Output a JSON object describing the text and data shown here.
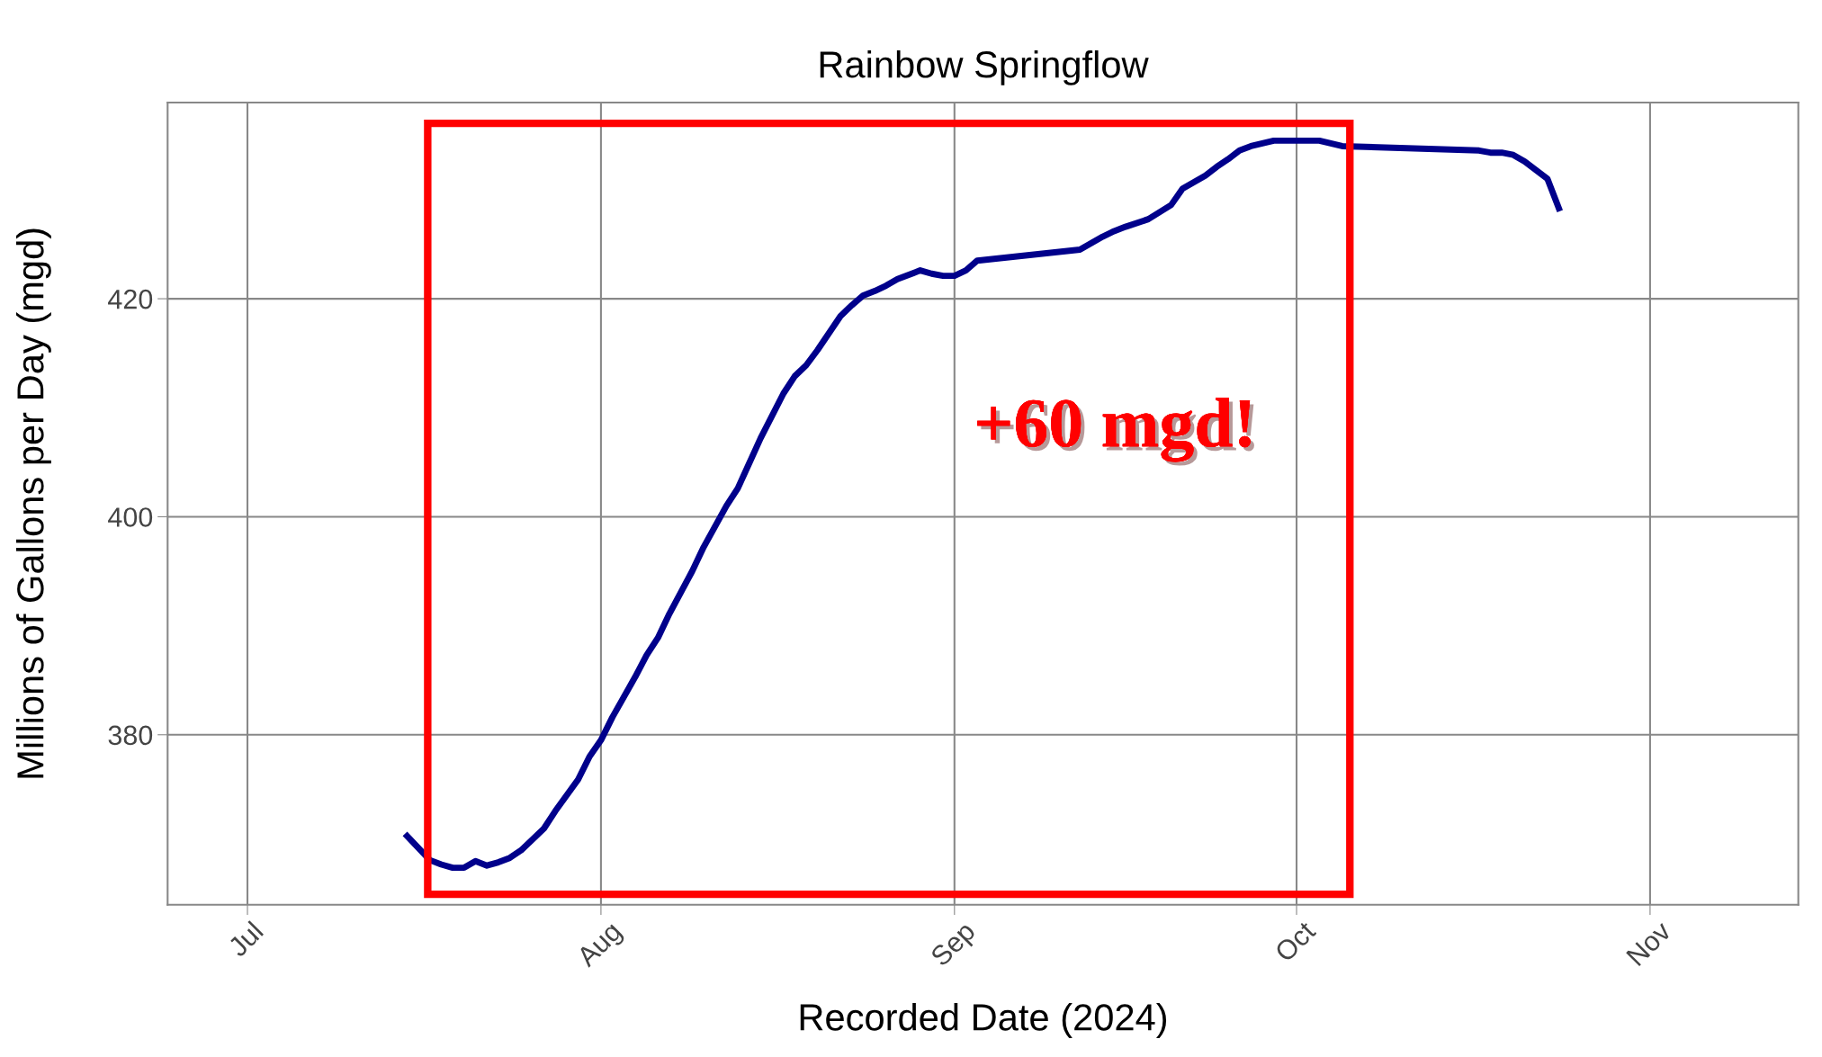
{
  "chart_data": {
    "type": "line",
    "title": "Rainbow Springflow",
    "xlabel": "Recorded Date (2024)",
    "ylabel": "Millions of Gallons per Day (mgd)",
    "x": [
      "2024-07-15",
      "2024-07-17",
      "2024-07-18",
      "2024-07-19",
      "2024-07-20",
      "2024-07-21",
      "2024-07-22",
      "2024-07-23",
      "2024-07-24",
      "2024-07-25",
      "2024-07-27",
      "2024-07-28",
      "2024-07-30",
      "2024-07-31",
      "2024-08-01",
      "2024-08-02",
      "2024-08-04",
      "2024-08-05",
      "2024-08-06",
      "2024-08-07",
      "2024-08-09",
      "2024-08-10",
      "2024-08-12",
      "2024-08-13",
      "2024-08-14",
      "2024-08-15",
      "2024-08-17",
      "2024-08-18",
      "2024-08-19",
      "2024-08-20",
      "2024-08-22",
      "2024-08-23",
      "2024-08-24",
      "2024-08-25",
      "2024-08-26",
      "2024-08-27",
      "2024-08-29",
      "2024-08-30",
      "2024-08-31",
      "2024-09-01",
      "2024-09-02",
      "2024-09-03",
      "2024-09-12",
      "2024-09-13",
      "2024-09-14",
      "2024-09-15",
      "2024-09-16",
      "2024-09-18",
      "2024-09-20",
      "2024-09-21",
      "2024-09-23",
      "2024-09-24",
      "2024-09-25",
      "2024-09-26",
      "2024-09-27",
      "2024-09-29",
      "2024-09-30",
      "2024-10-03",
      "2024-10-05",
      "2024-10-17",
      "2024-10-18",
      "2024-10-19",
      "2024-10-20",
      "2024-10-21",
      "2024-10-23",
      "2024-10-24"
    ],
    "series": [
      {
        "color": "#00008b",
        "values": [
          370.7,
          368.5,
          368.1,
          367.8,
          367.8,
          368.4,
          368.0,
          368.3,
          368.7,
          369.4,
          371.4,
          373.0,
          375.9,
          378.0,
          379.5,
          381.6,
          385.3,
          387.3,
          388.9,
          391.1,
          395.0,
          397.2,
          401.0,
          402.6,
          404.9,
          407.2,
          411.3,
          412.9,
          413.9,
          415.3,
          418.4,
          419.4,
          420.3,
          420.7,
          421.2,
          421.8,
          422.6,
          422.3,
          422.1,
          422.1,
          422.6,
          423.5,
          424.5,
          425.1,
          425.7,
          426.2,
          426.6,
          427.3,
          428.6,
          430.1,
          431.3,
          432.1,
          432.8,
          433.6,
          434.0,
          434.5,
          434.5,
          434.5,
          434.0,
          433.6,
          433.4,
          433.4,
          433.2,
          432.6,
          431.0,
          428.3
        ]
      }
    ],
    "xlim": [
      "2024-06-24",
      "2024-11-14"
    ],
    "xticks": [
      {
        "value": "2024-07-01",
        "label": "Jul"
      },
      {
        "value": "2024-08-01",
        "label": "Aug"
      },
      {
        "value": "2024-09-01",
        "label": "Sep"
      },
      {
        "value": "2024-10-01",
        "label": "Oct"
      },
      {
        "value": "2024-11-01",
        "label": "Nov"
      }
    ],
    "ylim": [
      364.4,
      438
    ],
    "yticks": [
      380,
      400,
      420
    ],
    "grid": true,
    "line_style": "solid",
    "marker": "none",
    "annotations": [
      "+60 mgd!"
    ]
  }
}
